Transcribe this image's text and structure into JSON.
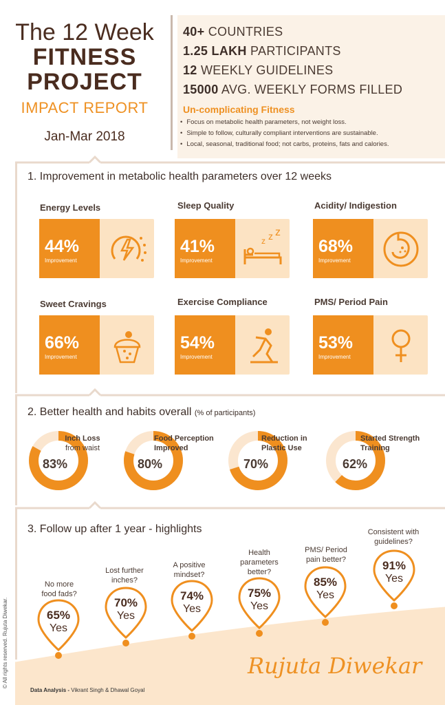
{
  "header": {
    "title_line1": "The 12 Week",
    "title_line2": "FITNESS",
    "title_line3": "PROJECT",
    "subtitle": "IMPACT REPORT",
    "date_range": "Jan-Mar 2018",
    "stats": [
      {
        "value": "40+",
        "label": "COUNTRIES"
      },
      {
        "value": "1.25 LAKH",
        "label": "PARTICIPANTS"
      },
      {
        "value": "12",
        "label": "WEEKLY GUIDELINES"
      },
      {
        "value": "15000",
        "label": "AVG. WEEKLY FORMS FILLED"
      }
    ],
    "tagline": "Un-complicating Fitness",
    "bullets": [
      "Focus on metabolic health parameters, not weight loss.",
      "Simple to follow, culturally compliant interventions are sustainable.",
      "Local, seasonal, traditional food; not carbs, proteins, fats and calories."
    ]
  },
  "section1": {
    "title": "1. Improvement in metabolic health parameters over 12 weeks",
    "cards": [
      {
        "label": "Energy Levels",
        "value": "44%",
        "sub": "Improvement",
        "icon": "energy-icon"
      },
      {
        "label": "Sleep Quality",
        "value": "41%",
        "sub": "Improvement",
        "icon": "sleep-icon"
      },
      {
        "label": "Acidity/ Indigestion",
        "value": "68%",
        "sub": "Improvement",
        "icon": "stomach-icon"
      },
      {
        "label": "Sweet Cravings",
        "value": "66%",
        "sub": "Improvement",
        "icon": "cupcake-icon"
      },
      {
        "label": "Exercise Compliance",
        "value": "54%",
        "sub": "Improvement",
        "icon": "exercise-icon"
      },
      {
        "label": "PMS/ Period Pain",
        "value": "53%",
        "sub": "Improvement",
        "icon": "female-icon"
      }
    ]
  },
  "section2": {
    "title": "2. Better health and habits overall",
    "title_note": "(% of participants)",
    "items": [
      {
        "label_line1": "Inch Loss",
        "label_line2": "from waist",
        "value": "83%",
        "fraction": 0.83
      },
      {
        "label_line1": "Food Perception",
        "label_line2": "Improved",
        "value": "80%",
        "fraction": 0.8
      },
      {
        "label_line1": "Reduction in",
        "label_line2": "Plastic Use",
        "value": "70%",
        "fraction": 0.7
      },
      {
        "label_line1": "Started Strength",
        "label_line2": "Training",
        "value": "62%",
        "fraction": 0.62
      }
    ]
  },
  "section3": {
    "title": "3. Follow up after 1 year - highlights",
    "items": [
      {
        "q1": "No more",
        "q2": "food fads?",
        "value": "65%",
        "yes": "Yes"
      },
      {
        "q1": "Lost further",
        "q2": "inches?",
        "value": "70%",
        "yes": "Yes"
      },
      {
        "q1": "A positive",
        "q2": "mindset?",
        "value": "74%",
        "yes": "Yes"
      },
      {
        "q1": "Health",
        "q2": "parameters",
        "q3": "better?",
        "value": "75%",
        "yes": "Yes"
      },
      {
        "q1": "PMS/ Period",
        "q2": "pain better?",
        "value": "85%",
        "yes": "Yes"
      },
      {
        "q1": "Consistent with",
        "q2": "guidelines?",
        "value": "91%",
        "yes": "Yes"
      }
    ]
  },
  "footer": {
    "credit_label": "Data Analysis -",
    "credit_names": "Vikrant Singh & Dhawal Goyal",
    "copyright": "© All rights reserved. Rujuta Diwekar.",
    "signature": "Rujuta Diwekar"
  },
  "colors": {
    "accent": "#ef8f1f",
    "accent_light": "#fce3c3",
    "brown": "#4a2c1f",
    "cream": "#fbf2e7"
  }
}
